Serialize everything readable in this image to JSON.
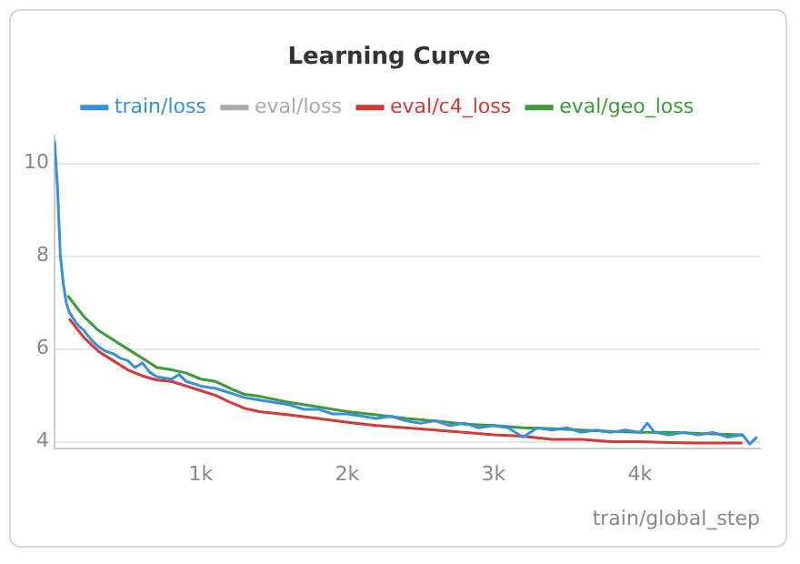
{
  "chart_data": {
    "type": "line",
    "title": "Learning Curve",
    "xlabel": "train/global_step",
    "xlim": [
      0,
      4820
    ],
    "ylim": [
      3.85,
      10.6
    ],
    "xticks": [
      {
        "value": 1000,
        "label": "1k"
      },
      {
        "value": 2000,
        "label": "2k"
      },
      {
        "value": 3000,
        "label": "3k"
      },
      {
        "value": 4000,
        "label": "4k"
      }
    ],
    "yticks": [
      4,
      6,
      8,
      10
    ],
    "grid": "y",
    "legend": "top",
    "marker": "none",
    "line_style": "solid",
    "series": [
      {
        "name": "train/loss",
        "color": "#3a8fd9",
        "x": [
          0,
          20,
          40,
          60,
          80,
          100,
          150,
          200,
          250,
          300,
          350,
          400,
          450,
          500,
          550,
          600,
          650,
          700,
          800,
          850,
          900,
          1000,
          1100,
          1200,
          1300,
          1400,
          1500,
          1600,
          1700,
          1800,
          1900,
          2000,
          2100,
          2200,
          2300,
          2400,
          2500,
          2600,
          2700,
          2800,
          2900,
          3000,
          3100,
          3200,
          3300,
          3400,
          3500,
          3600,
          3700,
          3800,
          3900,
          4000,
          4050,
          4100,
          4200,
          4300,
          4400,
          4500,
          4600,
          4700,
          4750,
          4800
        ],
        "values": [
          10.5,
          9.5,
          8.0,
          7.4,
          7.0,
          6.8,
          6.55,
          6.4,
          6.2,
          6.05,
          5.95,
          5.9,
          5.8,
          5.75,
          5.6,
          5.7,
          5.5,
          5.4,
          5.35,
          5.45,
          5.3,
          5.2,
          5.15,
          5.05,
          4.95,
          4.9,
          4.85,
          4.8,
          4.7,
          4.7,
          4.6,
          4.6,
          4.55,
          4.5,
          4.55,
          4.45,
          4.4,
          4.45,
          4.35,
          4.4,
          4.3,
          4.35,
          4.3,
          4.1,
          4.3,
          4.25,
          4.3,
          4.2,
          4.25,
          4.2,
          4.25,
          4.2,
          4.4,
          4.2,
          4.15,
          4.2,
          4.15,
          4.2,
          4.1,
          4.15,
          3.95,
          4.1
        ]
      },
      {
        "name": "eval/loss",
        "color": "#aaaaaa"
      },
      {
        "name": "eval/c4_loss",
        "color": "#d13a36",
        "x": [
          100,
          200,
          300,
          400,
          500,
          600,
          700,
          800,
          900,
          1000,
          1100,
          1200,
          1300,
          1400,
          1600,
          1800,
          2000,
          2200,
          2400,
          2600,
          2800,
          3000,
          3200,
          3400,
          3600,
          3800,
          4000,
          4200,
          4400,
          4700
        ],
        "values": [
          6.65,
          6.25,
          5.95,
          5.75,
          5.55,
          5.42,
          5.33,
          5.3,
          5.2,
          5.1,
          5.0,
          4.85,
          4.72,
          4.65,
          4.58,
          4.5,
          4.42,
          4.35,
          4.3,
          4.25,
          4.2,
          4.15,
          4.12,
          4.05,
          4.05,
          4.0,
          4.0,
          3.98,
          3.97,
          3.97
        ]
      },
      {
        "name": "eval/geo_loss",
        "color": "#3d9a3a",
        "x": [
          90,
          200,
          300,
          400,
          500,
          600,
          700,
          800,
          900,
          1000,
          1100,
          1200,
          1300,
          1400,
          1600,
          1800,
          2000,
          2200,
          2400,
          2600,
          2800,
          3000,
          3200,
          3400,
          3600,
          3800,
          4000,
          4200,
          4400,
          4700
        ],
        "values": [
          7.15,
          6.7,
          6.4,
          6.2,
          6.0,
          5.8,
          5.6,
          5.55,
          5.48,
          5.35,
          5.3,
          5.15,
          5.02,
          4.98,
          4.85,
          4.75,
          4.65,
          4.58,
          4.5,
          4.45,
          4.38,
          4.35,
          4.3,
          4.28,
          4.25,
          4.22,
          4.2,
          4.2,
          4.18,
          4.15
        ]
      }
    ]
  }
}
